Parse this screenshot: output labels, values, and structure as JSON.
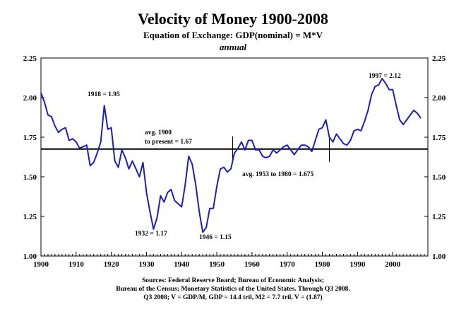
{
  "title": "Velocity of Money 1900-2008",
  "subtitle": "Equation of Exchange: GDP(nominal) = M*V",
  "frequency": "annual",
  "colors": {
    "series": "#1f1fb0",
    "average_line": "#000000",
    "axis": "#000000"
  },
  "chart_data": {
    "type": "line",
    "title": "Velocity of Money 1900-2008",
    "xlabel": "",
    "ylabel": "",
    "xlim": [
      1900,
      2010
    ],
    "ylim": [
      1.0,
      2.25
    ],
    "x_ticks": [
      1900,
      1910,
      1920,
      1930,
      1940,
      1950,
      1960,
      1970,
      1980,
      1990,
      2000
    ],
    "y_ticks": [
      "1.00",
      "1.25",
      "1.50",
      "1.75",
      "2.00",
      "2.25"
    ],
    "series": [
      {
        "name": "Velocity of Money",
        "x": [
          1900,
          1901,
          1902,
          1903,
          1904,
          1905,
          1906,
          1907,
          1908,
          1909,
          1910,
          1911,
          1912,
          1913,
          1914,
          1915,
          1916,
          1917,
          1918,
          1919,
          1920,
          1921,
          1922,
          1923,
          1924,
          1925,
          1926,
          1927,
          1928,
          1929,
          1930,
          1931,
          1932,
          1933,
          1934,
          1935,
          1936,
          1937,
          1938,
          1939,
          1940,
          1941,
          1942,
          1943,
          1944,
          1945,
          1946,
          1947,
          1948,
          1949,
          1950,
          1951,
          1952,
          1953,
          1954,
          1955,
          1956,
          1957,
          1958,
          1959,
          1960,
          1961,
          1962,
          1963,
          1964,
          1965,
          1966,
          1967,
          1968,
          1969,
          1970,
          1971,
          1972,
          1973,
          1974,
          1975,
          1976,
          1977,
          1978,
          1979,
          1980,
          1981,
          1982,
          1983,
          1984,
          1985,
          1986,
          1987,
          1988,
          1989,
          1990,
          1991,
          1992,
          1993,
          1994,
          1995,
          1996,
          1997,
          1998,
          1999,
          2000,
          2001,
          2002,
          2003,
          2004,
          2005,
          2006,
          2007,
          2008
        ],
        "y": [
          2.03,
          1.97,
          1.89,
          1.88,
          1.82,
          1.78,
          1.8,
          1.81,
          1.73,
          1.74,
          1.72,
          1.68,
          1.69,
          1.7,
          1.57,
          1.59,
          1.65,
          1.72,
          1.95,
          1.8,
          1.81,
          1.6,
          1.56,
          1.67,
          1.62,
          1.55,
          1.6,
          1.55,
          1.5,
          1.59,
          1.4,
          1.28,
          1.17,
          1.24,
          1.38,
          1.34,
          1.4,
          1.42,
          1.35,
          1.33,
          1.31,
          1.45,
          1.63,
          1.58,
          1.45,
          1.28,
          1.15,
          1.18,
          1.3,
          1.3,
          1.44,
          1.55,
          1.56,
          1.53,
          1.55,
          1.65,
          1.68,
          1.72,
          1.67,
          1.73,
          1.73,
          1.67,
          1.67,
          1.63,
          1.62,
          1.63,
          1.67,
          1.65,
          1.67,
          1.69,
          1.7,
          1.67,
          1.64,
          1.67,
          1.7,
          1.7,
          1.69,
          1.66,
          1.73,
          1.8,
          1.81,
          1.86,
          1.75,
          1.72,
          1.77,
          1.74,
          1.71,
          1.7,
          1.73,
          1.79,
          1.8,
          1.79,
          1.85,
          1.92,
          2.02,
          2.07,
          2.08,
          2.12,
          2.09,
          2.05,
          2.05,
          1.95,
          1.86,
          1.83,
          1.86,
          1.89,
          1.92,
          1.9,
          1.87
        ]
      }
    ],
    "average_line": {
      "value": 1.675,
      "label_line1": "avg. 1900",
      "label_line2": "to present = 1.67"
    },
    "average_1953_1980": {
      "label": "avg. 1953 to 1980 = 1.675",
      "start_year": 1954.5,
      "end_year": 1982
    },
    "annotations": [
      {
        "id": "1918",
        "text": "1918 = 1.95",
        "x": 1918,
        "y": 1.95
      },
      {
        "id": "1932",
        "text": "1932 = 1.17",
        "x": 1932,
        "y": 1.17
      },
      {
        "id": "1946",
        "text": "1946 = 1.15",
        "x": 1946,
        "y": 1.15
      },
      {
        "id": "1997",
        "text": "1997 = 2.12",
        "x": 1997,
        "y": 2.12
      }
    ],
    "sources": [
      "Sources: Federal Reserve Board; Bureau of Economic Analysis;",
      "Bureau of the Census; Monetary Statistics of the United States. Through Q3 2008.",
      "Q3 2008; V = GDP/M, GDP = 14.4 tril, M2 = 7.7 tril, V = (1.87)"
    ]
  }
}
